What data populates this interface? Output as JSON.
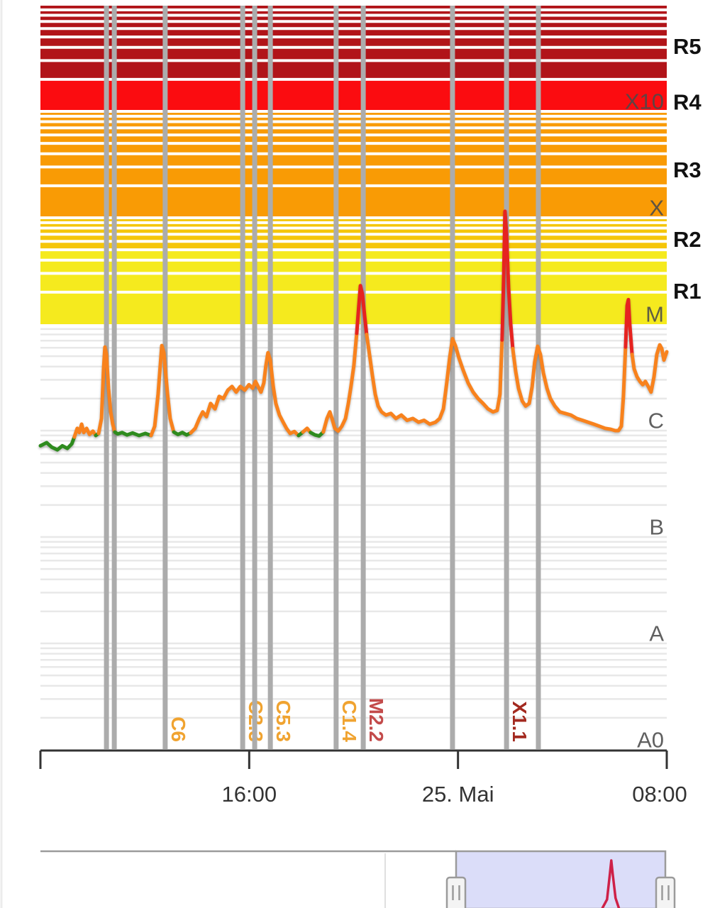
{
  "app": {
    "background": "#ffffff"
  },
  "chart_data": {
    "type": "line",
    "description": "GOES X-ray flux / solar flare monitor, logarithmic scale A0 to X10+ with NOAA R1-R5 radio blackout bands",
    "x_axis": {
      "range_hours": [
        0,
        24
      ],
      "ticks": [
        {
          "t": 8,
          "label": "16:00"
        },
        {
          "t": 16,
          "label": "25. Mai"
        },
        {
          "t": 24,
          "label": "08:00"
        }
      ]
    },
    "y_axis": {
      "scale": "log",
      "flux_floor": 1e-09,
      "flux_top": 0.01,
      "inner_labels": [
        {
          "label": "X10",
          "flux": 0.001
        },
        {
          "label": "X",
          "flux": 0.0001
        },
        {
          "label": "M",
          "flux": 1e-05
        },
        {
          "label": "C",
          "flux": 1e-06
        },
        {
          "label": "B",
          "flux": 1e-07
        },
        {
          "label": "A",
          "flux": 1e-08
        },
        {
          "label": "A0",
          "flux": 1e-09
        }
      ],
      "right_labels": [
        {
          "label": "R5",
          "flux_center": 0.0041
        },
        {
          "label": "R4",
          "flux_center": 0.00123
        },
        {
          "label": "R3",
          "flux_center": 0.000285
        },
        {
          "label": "R2",
          "flux_center": 6.3e-05
        },
        {
          "label": "R1",
          "flux_center": 2.05e-05
        }
      ]
    },
    "bands": [
      {
        "label": "R5",
        "from": 0.002,
        "to": 0.01,
        "color": "#B11419"
      },
      {
        "label": "R4",
        "from": 0.001,
        "to": 0.002,
        "color": "#FB0C10"
      },
      {
        "label": "R3",
        "from": 0.0001,
        "to": 0.001,
        "color": "#F99B05"
      },
      {
        "label": "R2",
        "from": 5e-05,
        "to": 0.0001,
        "color": "#F5C60A"
      },
      {
        "label": "R1",
        "from": 1e-05,
        "to": 5e-05,
        "color": "#F5EA1E"
      }
    ],
    "events": [
      {
        "t": 2.53,
        "label": ""
      },
      {
        "t": 2.83,
        "label": ""
      },
      {
        "t": 4.78,
        "label": "C6",
        "label_color": "#F0A330"
      },
      {
        "t": 7.75,
        "label": "C2.3",
        "label_color": "#F0A330"
      },
      {
        "t": 8.21,
        "label": ""
      },
      {
        "t": 8.81,
        "label": "C5.3",
        "label_color": "#F0A330"
      },
      {
        "t": 11.33,
        "label": "C1.4",
        "label_color": "#F0A330"
      },
      {
        "t": 12.37,
        "label": "M2.2",
        "label_color": "#C34B4B"
      },
      {
        "t": 15.79,
        "label": ""
      },
      {
        "t": 17.86,
        "label": "X1.1",
        "label_color": "#A32A20"
      },
      {
        "t": 19.08,
        "label": ""
      }
    ],
    "series": {
      "name": "xray-flux",
      "colors": {
        "low": "#2E8B1E",
        "mid": "#F8821D",
        "high": "#E62320"
      },
      "thresholds": {
        "green_below": 9.8e-07,
        "red_above": 1e-05
      },
      "points": [
        [
          0.0,
          7.2e-07
        ],
        [
          0.24,
          7.7e-07
        ],
        [
          0.43,
          7e-07
        ],
        [
          0.65,
          6.6e-07
        ],
        [
          0.84,
          7.2e-07
        ],
        [
          1.03,
          6.8e-07
        ],
        [
          1.2,
          7.5e-07
        ],
        [
          1.3,
          8.7e-07
        ],
        [
          1.41,
          1.05e-06
        ],
        [
          1.49,
          9.6e-07
        ],
        [
          1.58,
          1.15e-06
        ],
        [
          1.66,
          9.6e-07
        ],
        [
          1.77,
          1.05e-06
        ],
        [
          1.88,
          9.2e-07
        ],
        [
          2.01,
          9.9e-07
        ],
        [
          2.12,
          9e-07
        ],
        [
          2.23,
          9.4e-07
        ],
        [
          2.34,
          1.3e-06
        ],
        [
          2.42,
          3.8e-06
        ],
        [
          2.47,
          6.1e-06
        ],
        [
          2.53,
          5.2e-06
        ],
        [
          2.61,
          2.5e-06
        ],
        [
          2.69,
          1.5e-06
        ],
        [
          2.77,
          1.15e-06
        ],
        [
          2.85,
          9.7e-07
        ],
        [
          2.96,
          9.3e-07
        ],
        [
          3.13,
          9.6e-07
        ],
        [
          3.32,
          9.1e-07
        ],
        [
          3.53,
          9.5e-07
        ],
        [
          3.78,
          9e-07
        ],
        [
          4.02,
          9.4e-07
        ],
        [
          4.24,
          9e-07
        ],
        [
          4.38,
          1.1e-06
        ],
        [
          4.51,
          2.2e-06
        ],
        [
          4.65,
          6.3e-06
        ],
        [
          4.73,
          5.4e-06
        ],
        [
          4.87,
          2.2e-06
        ],
        [
          4.97,
          1.3e-06
        ],
        [
          5.11,
          9.7e-07
        ],
        [
          5.27,
          9.2e-07
        ],
        [
          5.44,
          9.6e-07
        ],
        [
          5.6,
          9.1e-07
        ],
        [
          5.76,
          9.5e-07
        ],
        [
          5.93,
          1.05e-06
        ],
        [
          6.09,
          1.3e-06
        ],
        [
          6.22,
          1.5e-06
        ],
        [
          6.36,
          1.35e-06
        ],
        [
          6.52,
          1.8e-06
        ],
        [
          6.69,
          1.6e-06
        ],
        [
          6.85,
          2.1e-06
        ],
        [
          7.01,
          2e-06
        ],
        [
          7.18,
          2.4e-06
        ],
        [
          7.34,
          2.6e-06
        ],
        [
          7.5,
          2.3e-06
        ],
        [
          7.66,
          2.6e-06
        ],
        [
          7.83,
          2.4e-06
        ],
        [
          7.99,
          2.7e-06
        ],
        [
          8.13,
          2.5e-06
        ],
        [
          8.24,
          2.9e-06
        ],
        [
          8.34,
          2.6e-06
        ],
        [
          8.45,
          2.3e-06
        ],
        [
          8.56,
          2.8e-06
        ],
        [
          8.64,
          4.1e-06
        ],
        [
          8.72,
          5.4e-06
        ],
        [
          8.81,
          4.6e-06
        ],
        [
          8.92,
          2.6e-06
        ],
        [
          9.02,
          1.8e-06
        ],
        [
          9.16,
          1.4e-06
        ],
        [
          9.3,
          1.2e-06
        ],
        [
          9.43,
          1.05e-06
        ],
        [
          9.57,
          9.4e-07
        ],
        [
          9.73,
          9.8e-07
        ],
        [
          9.89,
          9e-07
        ],
        [
          10.06,
          9.7e-07
        ],
        [
          10.22,
          1.05e-06
        ],
        [
          10.35,
          9.6e-07
        ],
        [
          10.52,
          9.1e-07
        ],
        [
          10.68,
          8.9e-07
        ],
        [
          10.84,
          9.7e-07
        ],
        [
          10.98,
          1.3e-06
        ],
        [
          11.09,
          1.5e-06
        ],
        [
          11.17,
          1.3e-06
        ],
        [
          11.28,
          1.05e-06
        ],
        [
          11.41,
          9.9e-07
        ],
        [
          11.55,
          1.1e-06
        ],
        [
          11.69,
          1.3e-06
        ],
        [
          11.8,
          1.8e-06
        ],
        [
          11.9,
          2.6e-06
        ],
        [
          12.01,
          4.1e-06
        ],
        [
          12.12,
          8.2e-06
        ],
        [
          12.2,
          1.5e-05
        ],
        [
          12.26,
          2.3e-05
        ],
        [
          12.34,
          1.9e-05
        ],
        [
          12.42,
          1.2e-05
        ],
        [
          12.5,
          8e-06
        ],
        [
          12.61,
          5.2e-06
        ],
        [
          12.72,
          3.3e-06
        ],
        [
          12.83,
          2.2e-06
        ],
        [
          12.94,
          1.7e-06
        ],
        [
          13.07,
          1.5e-06
        ],
        [
          13.24,
          1.4e-06
        ],
        [
          13.43,
          1.45e-06
        ],
        [
          13.62,
          1.3e-06
        ],
        [
          13.83,
          1.4e-06
        ],
        [
          14.05,
          1.25e-06
        ],
        [
          14.27,
          1.3e-06
        ],
        [
          14.49,
          1.2e-06
        ],
        [
          14.7,
          1.25e-06
        ],
        [
          14.92,
          1.15e-06
        ],
        [
          15.14,
          1.2e-06
        ],
        [
          15.3,
          1.3e-06
        ],
        [
          15.44,
          1.6e-06
        ],
        [
          15.57,
          2.8e-06
        ],
        [
          15.68,
          4.8e-06
        ],
        [
          15.79,
          7.3e-06
        ],
        [
          15.9,
          6.3e-06
        ],
        [
          16.04,
          4.8e-06
        ],
        [
          16.2,
          3.7e-06
        ],
        [
          16.39,
          2.8e-06
        ],
        [
          16.58,
          2.3e-06
        ],
        [
          16.77,
          2e-06
        ],
        [
          16.96,
          1.8e-06
        ],
        [
          17.15,
          1.6e-06
        ],
        [
          17.34,
          1.5e-06
        ],
        [
          17.5,
          1.55e-06
        ],
        [
          17.61,
          2.2e-06
        ],
        [
          17.69,
          7.1e-06
        ],
        [
          17.75,
          2.8e-05
        ],
        [
          17.8,
          0.000115
        ],
        [
          17.86,
          7e-05
        ],
        [
          17.94,
          2.2e-05
        ],
        [
          18.02,
          1e-05
        ],
        [
          18.1,
          5.9e-06
        ],
        [
          18.21,
          3.6e-06
        ],
        [
          18.32,
          2.5e-06
        ],
        [
          18.46,
          1.9e-06
        ],
        [
          18.59,
          1.7e-06
        ],
        [
          18.73,
          1.8e-06
        ],
        [
          18.84,
          2.6e-06
        ],
        [
          18.94,
          4.4e-06
        ],
        [
          19.05,
          6.2e-06
        ],
        [
          19.16,
          5.2e-06
        ],
        [
          19.27,
          3.5e-06
        ],
        [
          19.41,
          2.5e-06
        ],
        [
          19.54,
          2e-06
        ],
        [
          19.71,
          1.7e-06
        ],
        [
          19.9,
          1.5e-06
        ],
        [
          20.11,
          1.45e-06
        ],
        [
          20.33,
          1.4e-06
        ],
        [
          20.55,
          1.3e-06
        ],
        [
          20.77,
          1.25e-06
        ],
        [
          20.98,
          1.2e-06
        ],
        [
          21.2,
          1.15e-06
        ],
        [
          21.42,
          1.1e-06
        ],
        [
          21.64,
          1.05e-06
        ],
        [
          21.85,
          1.03e-06
        ],
        [
          22.02,
          1e-06
        ],
        [
          22.15,
          1e-06
        ],
        [
          22.26,
          1.1e-06
        ],
        [
          22.34,
          2.1e-06
        ],
        [
          22.42,
          6.1e-06
        ],
        [
          22.48,
          1.5e-05
        ],
        [
          22.53,
          1.7e-05
        ],
        [
          22.58,
          1e-05
        ],
        [
          22.67,
          5.2e-06
        ],
        [
          22.75,
          3.8e-06
        ],
        [
          22.86,
          3.2e-06
        ],
        [
          22.97,
          2.9e-06
        ],
        [
          23.08,
          2.7e-06
        ],
        [
          23.18,
          2.9e-06
        ],
        [
          23.29,
          2.6e-06
        ],
        [
          23.4,
          2.3e-06
        ],
        [
          23.51,
          3.2e-06
        ],
        [
          23.62,
          5.2e-06
        ],
        [
          23.73,
          6.4e-06
        ],
        [
          23.81,
          5.9e-06
        ],
        [
          23.89,
          4.6e-06
        ],
        [
          24.0,
          5.5e-06
        ]
      ]
    },
    "minimap": {
      "selection_span_hours": 24,
      "spike": {
        "t": 17.8,
        "color": "#CE2148"
      },
      "selection_fill": "#DBDDF9",
      "border_color": "#9B9B9B",
      "handle_fill": "#F4F4F4",
      "day_divider_offset_hours": -8.1
    },
    "style": {
      "event_bar_color": "#ACACAC",
      "grid_color": "#E8E8E8",
      "stripe_color": "#FFFFFF",
      "axis_color": "#333333",
      "inner_label_color": "#4A4A4A",
      "right_label_color": "#111111"
    }
  }
}
